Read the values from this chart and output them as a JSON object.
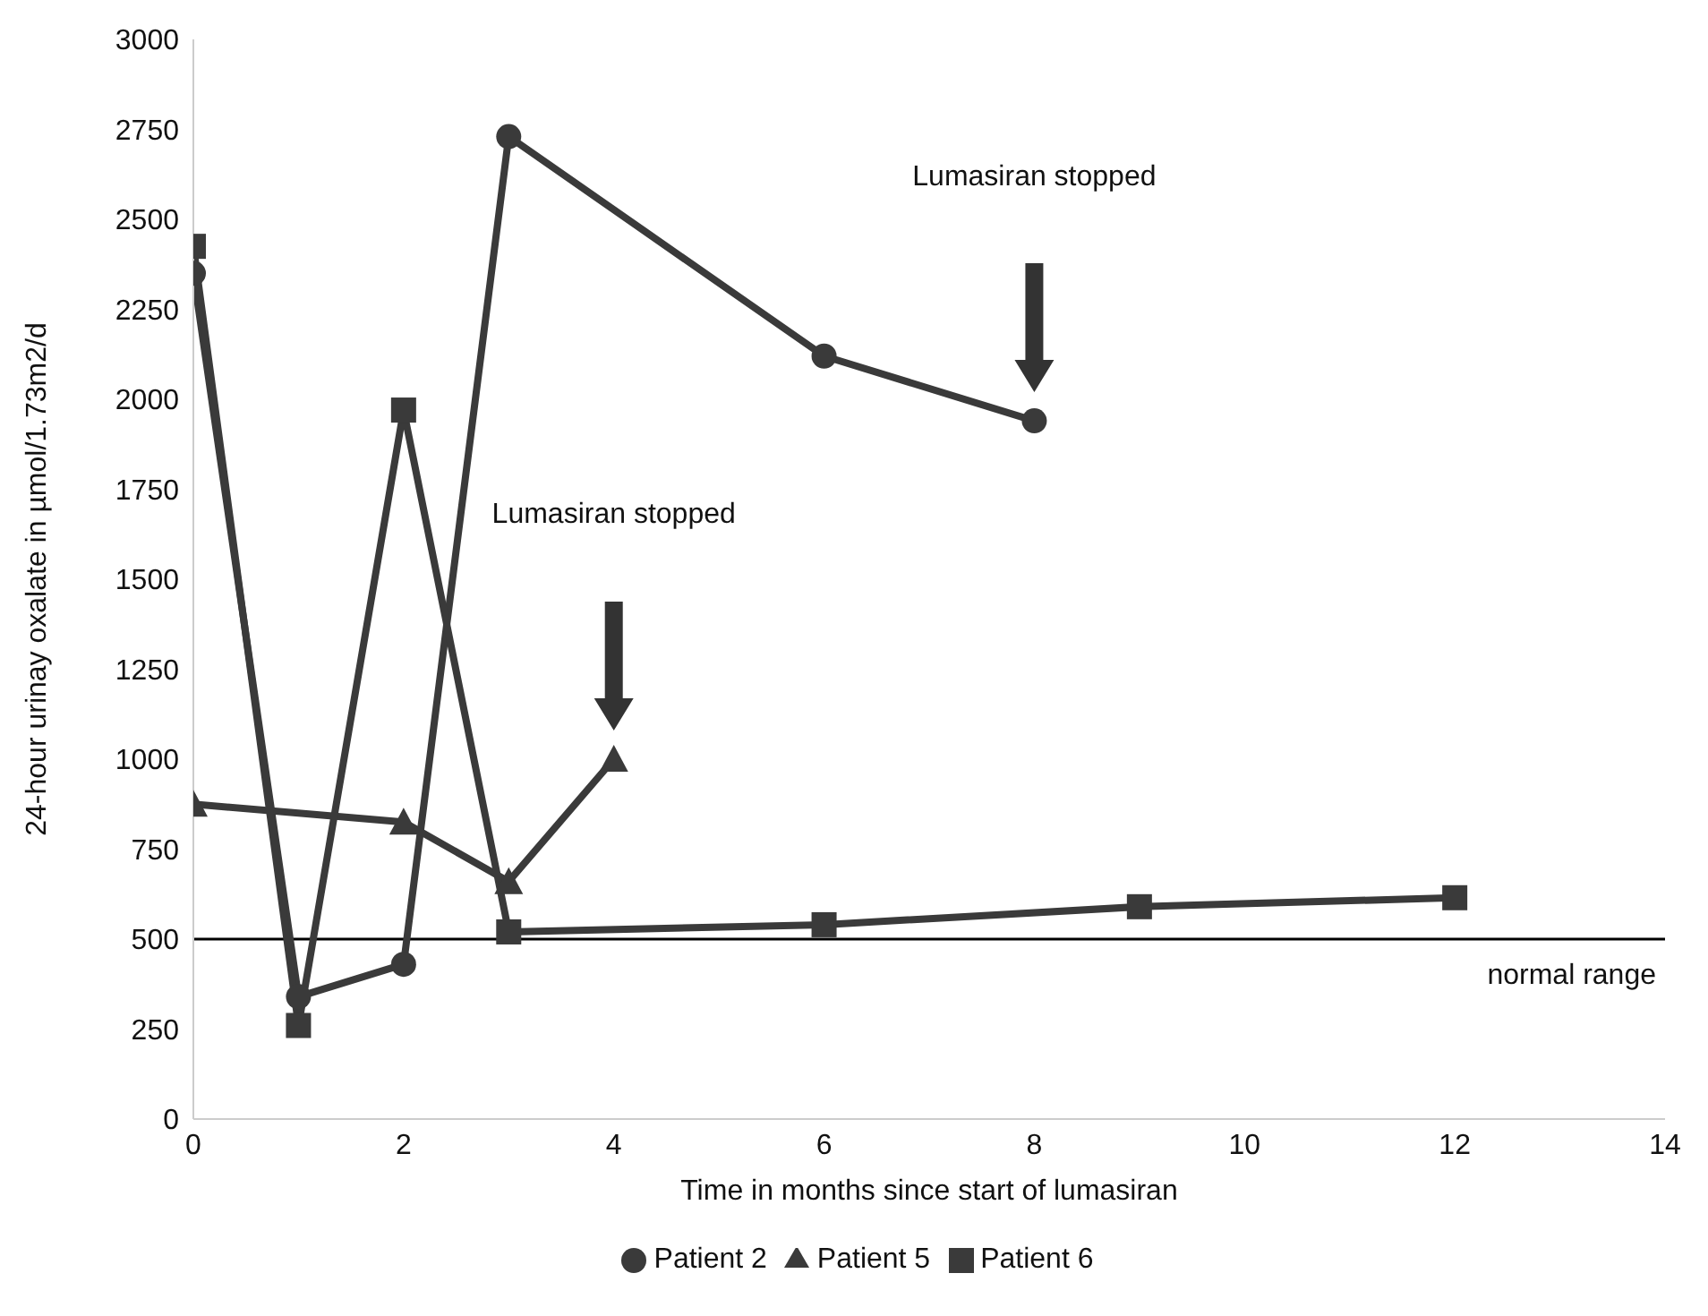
{
  "chart_data": {
    "type": "line",
    "xlabel": "Time in months since start of lumasiran",
    "ylabel": "24-hour urinay oxalate in µmol/1.73m2/d",
    "xlim": [
      0,
      14
    ],
    "xticks": [
      0,
      2,
      4,
      6,
      8,
      10,
      12,
      14
    ],
    "ylim": [
      0,
      3000
    ],
    "yticks": [
      0,
      250,
      500,
      750,
      1000,
      1250,
      1500,
      1750,
      2000,
      2250,
      2500,
      2750,
      3000
    ],
    "grid": false,
    "legend": "bottom",
    "series": [
      {
        "name": "Patient 2",
        "color": "#3a3a3a",
        "marker": "circle",
        "x": [
          0,
          1,
          2,
          3,
          6,
          8
        ],
        "values": [
          2350,
          340,
          430,
          2730,
          2120,
          1940
        ]
      },
      {
        "name": "Patient 5",
        "color": "#3a3a3a",
        "marker": "triangle",
        "x": [
          0,
          2,
          3,
          4
        ],
        "values": [
          875,
          825,
          660,
          1000
        ]
      },
      {
        "name": "Patient 6",
        "color": "#3a3a3a",
        "marker": "square",
        "x": [
          0,
          1,
          2,
          3,
          6,
          9,
          12
        ],
        "values": [
          2425,
          260,
          1970,
          520,
          540,
          590,
          615
        ]
      }
    ],
    "ref_lines": [
      {
        "axis": "y",
        "value": 500,
        "label": "normal range",
        "color": "#000000"
      }
    ],
    "annotations": [
      "Lumasiran stopped",
      "Lumasiran stopped"
    ]
  }
}
